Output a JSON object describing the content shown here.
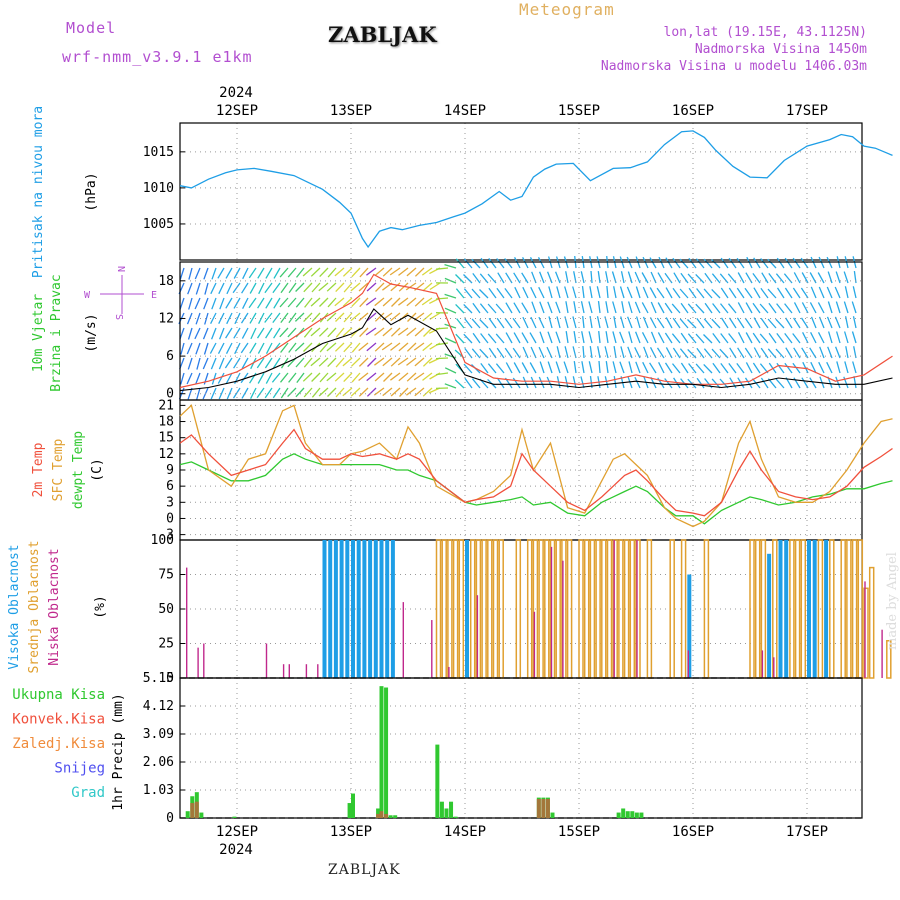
{
  "header": {
    "model_label": "Model",
    "model_name": "wrf-nmm_v3.9.1 e1km",
    "station": "ZABLJAK",
    "product": "Meteogram",
    "lonlat": "lon,lat (19.15E, 43.1125N)",
    "elevation": "Nadmorska Visina 1450m",
    "model_elevation": "Nadmorska Visina u modelu 1406.03m"
  },
  "footer": {
    "station": "ZABLJAK",
    "credit": "made by Angel"
  },
  "colors": {
    "pressure": "#1e9ee6",
    "temp2m": "#f0503c",
    "sfc": "#e0a030",
    "dewpt": "#30c830",
    "high_cloud": "#1e9ee6",
    "mid_cloud": "#e0a030",
    "low_cloud": "#c0288c",
    "total_precip": "#30c830",
    "conv_precip": "#f0503c",
    "frozen_precip": "#f08c3c",
    "snow": "#5050f0",
    "hail": "#30c8c8",
    "wind_black": "#000000",
    "gust_red": "#f0503c"
  },
  "chart_data": [
    {
      "type": "line",
      "panel": "pressure",
      "ylabel_left": "Pritisak na nivou mora",
      "ylabel_unit": "(hPa)",
      "ylim": [
        1000,
        1019
      ],
      "y_ticks": [
        1005,
        1010,
        1015
      ],
      "year_top": "2024",
      "x_tick_labels": [
        "12SEP",
        "13SEP",
        "14SEP",
        "15SEP",
        "16SEP",
        "17SEP"
      ],
      "grid": true,
      "x": [
        -0.5,
        -0.4,
        -0.25,
        -0.1,
        0,
        0.15,
        0.3,
        0.5,
        0.75,
        0.9,
        1.0,
        1.1,
        1.15,
        1.25,
        1.35,
        1.45,
        1.6,
        1.75,
        1.9,
        2.0,
        2.15,
        2.3,
        2.4,
        2.5,
        2.6,
        2.7,
        2.8,
        2.95,
        3.1,
        3.3,
        3.45,
        3.6,
        3.75,
        3.9,
        4.0,
        4.1,
        4.2,
        4.35,
        4.5,
        4.65,
        4.8,
        5.0,
        5.2,
        5.3,
        5.4,
        5.5,
        5.6,
        5.75
      ],
      "series": [
        {
          "values": [
            1010.3,
            1010.0,
            1011.2,
            1012.1,
            1012.5,
            1012.7,
            1012.3,
            1011.7,
            1009.8,
            1008.0,
            1006.5,
            1003.0,
            1001.8,
            1004.0,
            1004.5,
            1004.2,
            1004.8,
            1005.2,
            1006.0,
            1006.5,
            1007.8,
            1009.5,
            1008.3,
            1008.8,
            1011.5,
            1012.6,
            1013.3,
            1013.4,
            1011.0,
            1012.7,
            1012.8,
            1013.6,
            1016.0,
            1017.8,
            1017.9,
            1017.0,
            1015.2,
            1013.0,
            1011.5,
            1011.4,
            1013.8,
            1015.8,
            1016.7,
            1017.4,
            1017.1,
            1015.8,
            1015.5,
            1014.5
          ]
        }
      ]
    },
    {
      "type": "line",
      "panel": "wind",
      "ylabel_left": "10m Vjetar Brzina i Pravac",
      "ylabel_unit": "(m/s)",
      "compass": {
        "n": "N",
        "s": "S",
        "w": "W",
        "e": "E"
      },
      "ylim": [
        -1,
        21
      ],
      "y_ticks": [
        0,
        6,
        12,
        18
      ],
      "grid": true,
      "x": [
        -0.5,
        -0.25,
        0,
        0.25,
        0.5,
        0.75,
        1.0,
        1.1,
        1.2,
        1.35,
        1.5,
        1.75,
        2.0,
        2.25,
        2.5,
        2.75,
        3.0,
        3.25,
        3.5,
        3.75,
        4.0,
        4.25,
        4.5,
        4.75,
        5.0,
        5.25,
        5.5,
        5.75
      ],
      "series": [
        {
          "name": "speed",
          "values": [
            0.5,
            1.0,
            2.0,
            3.5,
            5.5,
            8.0,
            9.5,
            10.5,
            13.5,
            11.0,
            12.5,
            10.0,
            3.0,
            1.5,
            1.5,
            1.5,
            1.0,
            1.5,
            2.0,
            1.5,
            1.5,
            1.0,
            1.5,
            2.5,
            2.0,
            1.5,
            1.5,
            2.5
          ]
        },
        {
          "name": "gust",
          "values": [
            1.0,
            2.0,
            3.5,
            6.0,
            9.0,
            12.0,
            14.5,
            16.0,
            19.0,
            17.5,
            17.0,
            16.0,
            5.0,
            2.5,
            2.0,
            2.0,
            1.5,
            2.0,
            3.0,
            2.0,
            1.5,
            1.5,
            2.0,
            4.5,
            4.0,
            2.0,
            3.0,
            6.0
          ]
        }
      ],
      "wind_dir_deg": [
        200,
        200,
        210,
        210,
        220,
        225,
        225,
        225,
        230,
        230,
        230,
        230,
        320,
        320,
        330,
        340,
        350,
        350,
        340,
        330,
        320,
        320,
        330,
        320,
        330,
        340,
        350,
        230
      ]
    },
    {
      "type": "line",
      "panel": "temperature",
      "ylabel_lines": [
        "2m Temp",
        "SFC Temp",
        "dewpt Temp"
      ],
      "ylabel_unit": "(C)",
      "ylim": [
        -4,
        22
      ],
      "y_ticks": [
        -3,
        0,
        3,
        6,
        9,
        12,
        15,
        18,
        21
      ],
      "grid": true,
      "x": [
        -0.5,
        -0.4,
        -0.25,
        -0.05,
        0.1,
        0.25,
        0.4,
        0.5,
        0.6,
        0.75,
        0.9,
        1.0,
        1.1,
        1.25,
        1.4,
        1.5,
        1.6,
        1.75,
        2.0,
        2.1,
        2.25,
        2.4,
        2.5,
        2.6,
        2.75,
        2.9,
        3.05,
        3.2,
        3.3,
        3.4,
        3.5,
        3.6,
        3.75,
        3.85,
        4.0,
        4.1,
        4.25,
        4.4,
        4.5,
        4.6,
        4.75,
        4.9,
        5.05,
        5.2,
        5.35,
        5.5,
        5.65,
        5.75
      ],
      "series": [
        {
          "name": "temp2m",
          "values": [
            14,
            15.5,
            12,
            8,
            9,
            10,
            14,
            16.5,
            13,
            11,
            11,
            12,
            11.5,
            12,
            11,
            12,
            11,
            7,
            3,
            3.5,
            4,
            6,
            12,
            9,
            6,
            3,
            1.5,
            4,
            6,
            8,
            9,
            7,
            3.5,
            1.5,
            1,
            0.5,
            3,
            9,
            12.5,
            9,
            5,
            4,
            3.5,
            4,
            6,
            9.5,
            11.5,
            13
          ]
        },
        {
          "name": "sfc",
          "values": [
            19,
            21,
            9,
            6,
            11,
            12,
            20,
            21,
            14,
            10,
            10,
            12,
            12.5,
            14,
            11,
            17,
            14,
            6,
            3,
            3.5,
            5,
            8,
            16.5,
            9,
            14,
            2,
            1,
            7,
            11,
            12,
            10,
            8,
            2,
            0,
            -1.5,
            -0.5,
            3,
            14,
            18,
            11,
            4,
            3,
            3,
            5,
            9,
            14,
            18,
            18.5
          ]
        },
        {
          "name": "dewpt",
          "values": [
            10,
            10.5,
            9,
            7,
            7,
            8,
            11,
            12,
            11,
            10,
            10,
            10,
            10,
            10,
            9,
            9,
            8,
            7,
            3,
            2.5,
            3,
            3.5,
            4,
            2.5,
            3,
            1,
            0.5,
            3,
            4,
            5,
            6,
            5,
            2,
            0.5,
            0.5,
            -1,
            1.5,
            3,
            4,
            3.5,
            2.5,
            3,
            4,
            4.5,
            5.5,
            5.5,
            6.5,
            7
          ]
        }
      ]
    },
    {
      "type": "bar",
      "panel": "cloud",
      "ylabel_lines": [
        "Visoka Oblacnost",
        "Srednja Oblacnost",
        "Niska Oblacnost"
      ],
      "ylabel_unit": "(%)",
      "ylim": [
        0,
        100
      ],
      "y_ticks": [
        0,
        25,
        50,
        75,
        100
      ],
      "grid": true,
      "series": [
        {
          "name": "high",
          "bars": [
            [
              0.75,
              100
            ],
            [
              0.8,
              100
            ],
            [
              0.85,
              100
            ],
            [
              0.9,
              100
            ],
            [
              0.95,
              100
            ],
            [
              1.0,
              100
            ],
            [
              1.05,
              100
            ],
            [
              1.1,
              100
            ],
            [
              1.15,
              100
            ],
            [
              1.2,
              100
            ],
            [
              1.25,
              100
            ],
            [
              1.3,
              100
            ],
            [
              1.35,
              100
            ],
            [
              2.0,
              100
            ],
            [
              3.95,
              75
            ],
            [
              4.65,
              90
            ],
            [
              4.75,
              100
            ],
            [
              4.8,
              100
            ],
            [
              5.0,
              100
            ],
            [
              5.05,
              100
            ],
            [
              5.15,
              100
            ]
          ]
        },
        {
          "name": "mid",
          "bars": [
            [
              1.75,
              100
            ],
            [
              1.8,
              100
            ],
            [
              1.85,
              100
            ],
            [
              1.9,
              100
            ],
            [
              1.95,
              100
            ],
            [
              2.05,
              100
            ],
            [
              2.1,
              100
            ],
            [
              2.15,
              100
            ],
            [
              2.2,
              100
            ],
            [
              2.25,
              100
            ],
            [
              2.3,
              100
            ],
            [
              2.45,
              100
            ],
            [
              2.55,
              100
            ],
            [
              2.6,
              100
            ],
            [
              2.65,
              100
            ],
            [
              2.7,
              100
            ],
            [
              2.75,
              100
            ],
            [
              2.8,
              100
            ],
            [
              2.85,
              100
            ],
            [
              2.9,
              100
            ],
            [
              3.0,
              100
            ],
            [
              3.05,
              100
            ],
            [
              3.1,
              100
            ],
            [
              3.15,
              100
            ],
            [
              3.2,
              100
            ],
            [
              3.25,
              100
            ],
            [
              3.3,
              100
            ],
            [
              3.35,
              100
            ],
            [
              3.4,
              100
            ],
            [
              3.45,
              100
            ],
            [
              3.5,
              100
            ],
            [
              3.6,
              100
            ],
            [
              3.8,
              100
            ],
            [
              3.9,
              100
            ],
            [
              4.1,
              100
            ],
            [
              4.5,
              100
            ],
            [
              4.55,
              100
            ],
            [
              4.6,
              100
            ],
            [
              4.7,
              100
            ],
            [
              4.85,
              100
            ],
            [
              4.9,
              100
            ],
            [
              4.95,
              100
            ],
            [
              5.1,
              100
            ],
            [
              5.2,
              100
            ],
            [
              5.3,
              100
            ],
            [
              5.35,
              100
            ],
            [
              5.4,
              100
            ],
            [
              5.45,
              100
            ],
            [
              5.5,
              65
            ],
            [
              5.55,
              80
            ],
            [
              5.7,
              27
            ]
          ]
        },
        {
          "name": "low",
          "bars": [
            [
              -0.45,
              80
            ],
            [
              -0.35,
              22
            ],
            [
              -0.3,
              25
            ],
            [
              0.25,
              25
            ],
            [
              0.4,
              10
            ],
            [
              0.45,
              10
            ],
            [
              0.6,
              10
            ],
            [
              0.7,
              10
            ],
            [
              1.45,
              55
            ],
            [
              1.7,
              42
            ],
            [
              1.85,
              8
            ],
            [
              2.1,
              60
            ],
            [
              2.6,
              48
            ],
            [
              2.75,
              95
            ],
            [
              2.85,
              85
            ],
            [
              3.3,
              100
            ],
            [
              3.5,
              100
            ],
            [
              3.95,
              20
            ],
            [
              4.6,
              20
            ],
            [
              4.7,
              15
            ],
            [
              5.5,
              70
            ],
            [
              5.65,
              35
            ]
          ]
        }
      ]
    },
    {
      "type": "bar",
      "panel": "precip",
      "ylabel_lines": [
        "Ukupna Kisa",
        "Konvek.Kisa",
        "Zaledj.Kisa",
        "Snijeg",
        "Grad"
      ],
      "ylabel_unit": "1hr Precip (mm)",
      "ylim": [
        0,
        5.15
      ],
      "y_ticks": [
        0,
        1.03,
        2.06,
        3.09,
        4.12,
        5.15
      ],
      "year_bottom": "2024",
      "x_tick_labels": [
        "12SEP",
        "13SEP",
        "14SEP",
        "15SEP",
        "16SEP",
        "17SEP"
      ],
      "grid": true,
      "series": [
        {
          "name": "total",
          "bars": [
            [
              -0.45,
              0.25
            ],
            [
              -0.41,
              0.8
            ],
            [
              -0.37,
              0.95
            ],
            [
              -0.33,
              0.2
            ],
            [
              -0.04,
              0.05
            ],
            [
              0.97,
              0.55
            ],
            [
              1.0,
              0.9
            ],
            [
              1.22,
              0.35
            ],
            [
              1.25,
              4.85
            ],
            [
              1.29,
              4.8
            ],
            [
              1.33,
              0.1
            ],
            [
              1.37,
              0.1
            ],
            [
              1.74,
              2.7
            ],
            [
              1.78,
              0.6
            ],
            [
              1.82,
              0.35
            ],
            [
              1.86,
              0.6
            ],
            [
              1.9,
              0.05
            ],
            [
              2.63,
              0.75
            ],
            [
              2.67,
              0.75
            ],
            [
              2.71,
              0.75
            ],
            [
              2.75,
              0.2
            ],
            [
              3.33,
              0.2
            ],
            [
              3.37,
              0.35
            ],
            [
              3.41,
              0.25
            ],
            [
              3.45,
              0.25
            ],
            [
              3.49,
              0.2
            ],
            [
              3.53,
              0.2
            ]
          ]
        },
        {
          "name": "convective",
          "bars": [
            [
              -0.41,
              0.55
            ],
            [
              -0.37,
              0.6
            ],
            [
              1.22,
              0.15
            ],
            [
              1.25,
              0.25
            ],
            [
              1.29,
              0.15
            ],
            [
              2.63,
              0.7
            ],
            [
              2.67,
              0.7
            ],
            [
              2.71,
              0.7
            ]
          ]
        }
      ]
    }
  ]
}
